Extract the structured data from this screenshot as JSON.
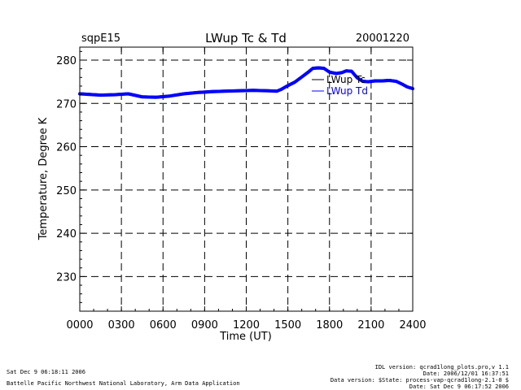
{
  "header": {
    "site": "sqpE15",
    "title": "LWup Tc & Td",
    "date": "20001220"
  },
  "footer": {
    "left_line1": "Sat Dec  9 06:18:11 2006",
    "left_line2": "Battelle Pacific Northwest National Laboratory, Arm Data Application",
    "right_line1": "IDL version: qcrad1long_plots.pro,v 1.1",
    "right_line2": "Date: 2006/12/01 16:37:51",
    "right_line3": "Data version: $State: process-vap-qcrad1long-2.1-0 $",
    "right_line4": "Date: Sat Dec  9 06:17:52 2006"
  },
  "chart_data": {
    "type": "line",
    "title": "LWup Tc & Td",
    "xlabel": "Time (UT)",
    "ylabel": "Temperature, Degree K",
    "xlim": [
      0,
      2400
    ],
    "ylim": [
      222,
      283
    ],
    "x_ticks": [
      "0000",
      "0300",
      "0600",
      "0900",
      "1200",
      "1500",
      "1800",
      "2100",
      "2400"
    ],
    "y_ticks": [
      230,
      240,
      250,
      260,
      270,
      280
    ],
    "grid": true,
    "legend_position": "top-right",
    "x_units": "hours UT",
    "series": [
      {
        "name": "LWup Tc",
        "color": "#000000",
        "x": [
          0,
          1.5,
          2.5,
          3.5,
          4.5,
          5.5,
          6.5,
          7.5,
          8.5,
          9.5,
          10.5,
          11.5,
          12.5,
          13.5,
          14.2,
          14.5,
          15.0,
          15.5,
          16.0,
          16.5,
          16.8,
          17.2,
          17.6,
          18.0,
          18.5,
          18.9,
          19.2,
          19.6,
          20.0,
          20.4,
          20.8,
          21.3,
          21.8,
          22.3,
          22.8,
          23.2,
          23.6,
          24.0
        ],
        "y": [
          272.3,
          272.0,
          272.1,
          272.3,
          271.6,
          271.5,
          271.8,
          272.3,
          272.6,
          272.8,
          272.9,
          273.0,
          273.1,
          273.0,
          272.9,
          273.3,
          274.2,
          275.0,
          276.2,
          277.4,
          278.2,
          278.3,
          278.2,
          277.3,
          277.0,
          277.2,
          277.6,
          277.5,
          276.0,
          275.2,
          275.1,
          275.3,
          275.3,
          275.4,
          275.2,
          274.6,
          273.9,
          273.5
        ]
      },
      {
        "name": "LWup Td",
        "color": "#0000ff",
        "x": [
          0,
          1.5,
          2.5,
          3.5,
          4.5,
          5.5,
          6.5,
          7.5,
          8.5,
          9.5,
          10.5,
          11.5,
          12.5,
          13.5,
          14.2,
          14.5,
          15.0,
          15.5,
          16.0,
          16.5,
          16.8,
          17.2,
          17.6,
          18.0,
          18.5,
          18.9,
          19.2,
          19.6,
          20.0,
          20.4,
          20.8,
          21.3,
          21.8,
          22.3,
          22.8,
          23.2,
          23.6,
          24.0
        ],
        "y": [
          272.2,
          271.9,
          272.0,
          272.2,
          271.5,
          271.4,
          271.7,
          272.2,
          272.5,
          272.7,
          272.8,
          272.9,
          273.0,
          272.9,
          272.8,
          273.2,
          274.1,
          274.9,
          276.1,
          277.3,
          278.1,
          278.2,
          278.1,
          277.2,
          276.9,
          277.1,
          277.5,
          277.4,
          275.9,
          275.1,
          275.0,
          275.2,
          275.2,
          275.3,
          275.1,
          274.5,
          273.8,
          273.4
        ]
      }
    ]
  }
}
